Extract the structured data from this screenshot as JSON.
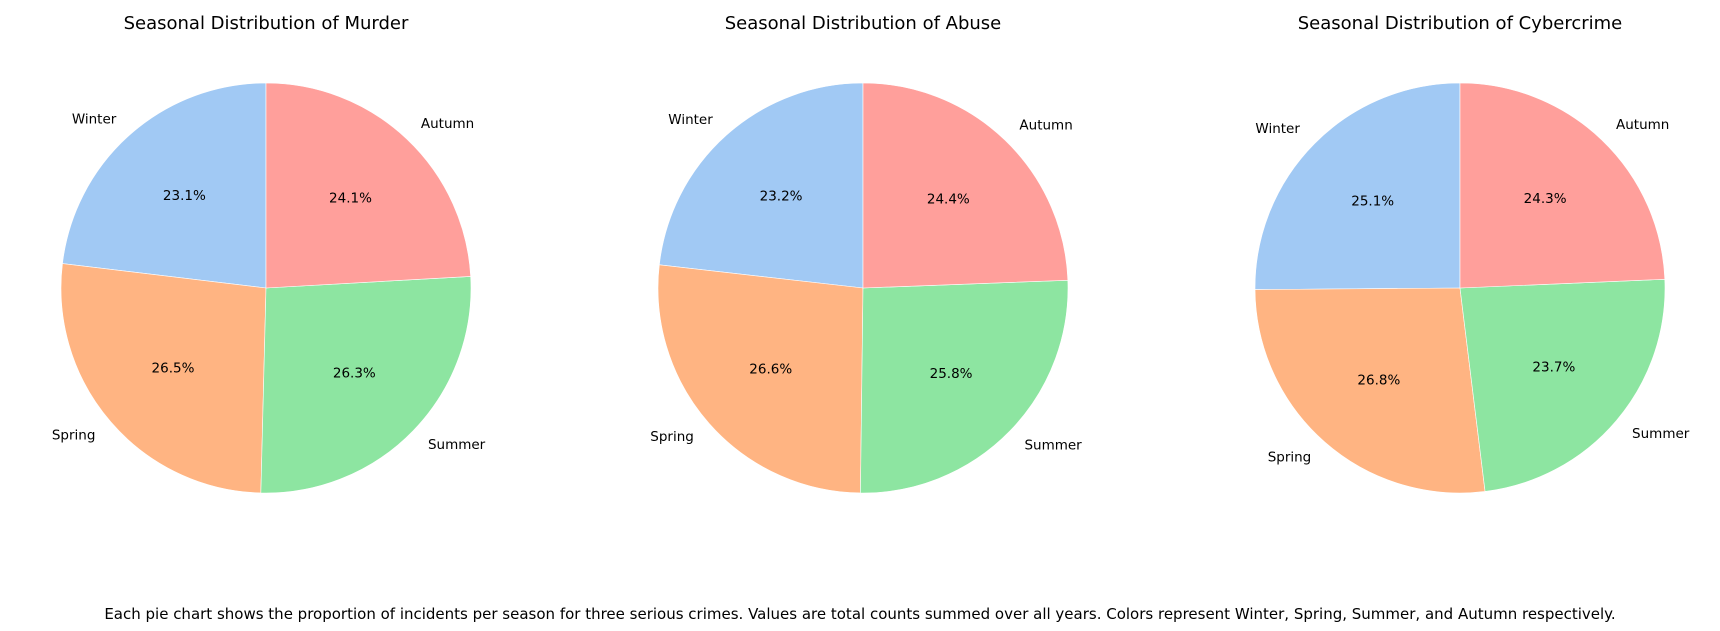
{
  "chart_data": [
    {
      "type": "pie",
      "title": "Seasonal Distribution of Murder",
      "categories": [
        "Winter",
        "Spring",
        "Summer",
        "Autumn"
      ],
      "values": [
        23.1,
        26.5,
        26.3,
        24.1
      ],
      "value_labels": [
        "23.1%",
        "26.5%",
        "26.3%",
        "24.1%"
      ],
      "colors": [
        "#a1c9f4",
        "#ffb482",
        "#8de5a1",
        "#ff9f9b"
      ],
      "start_angle_deg": 90,
      "direction": "counterclockwise"
    },
    {
      "type": "pie",
      "title": "Seasonal Distribution of Abuse",
      "categories": [
        "Winter",
        "Spring",
        "Summer",
        "Autumn"
      ],
      "values": [
        23.2,
        26.6,
        25.8,
        24.4
      ],
      "value_labels": [
        "23.2%",
        "26.6%",
        "25.8%",
        "24.4%"
      ],
      "colors": [
        "#a1c9f4",
        "#ffb482",
        "#8de5a1",
        "#ff9f9b"
      ],
      "start_angle_deg": 90,
      "direction": "counterclockwise"
    },
    {
      "type": "pie",
      "title": "Seasonal Distribution of Cybercrime",
      "categories": [
        "Winter",
        "Spring",
        "Summer",
        "Autumn"
      ],
      "values": [
        25.1,
        26.8,
        23.7,
        24.3
      ],
      "value_labels": [
        "25.1%",
        "26.8%",
        "23.7%",
        "24.3%"
      ],
      "colors": [
        "#a1c9f4",
        "#ffb482",
        "#8de5a1",
        "#ff9f9b"
      ],
      "start_angle_deg": 90,
      "direction": "counterclockwise"
    }
  ],
  "caption": "Each pie chart shows the proportion of incidents per season for three serious crimes. Values are total counts summed over all years. Colors represent Winter, Spring, Summer, and Autumn respectively."
}
